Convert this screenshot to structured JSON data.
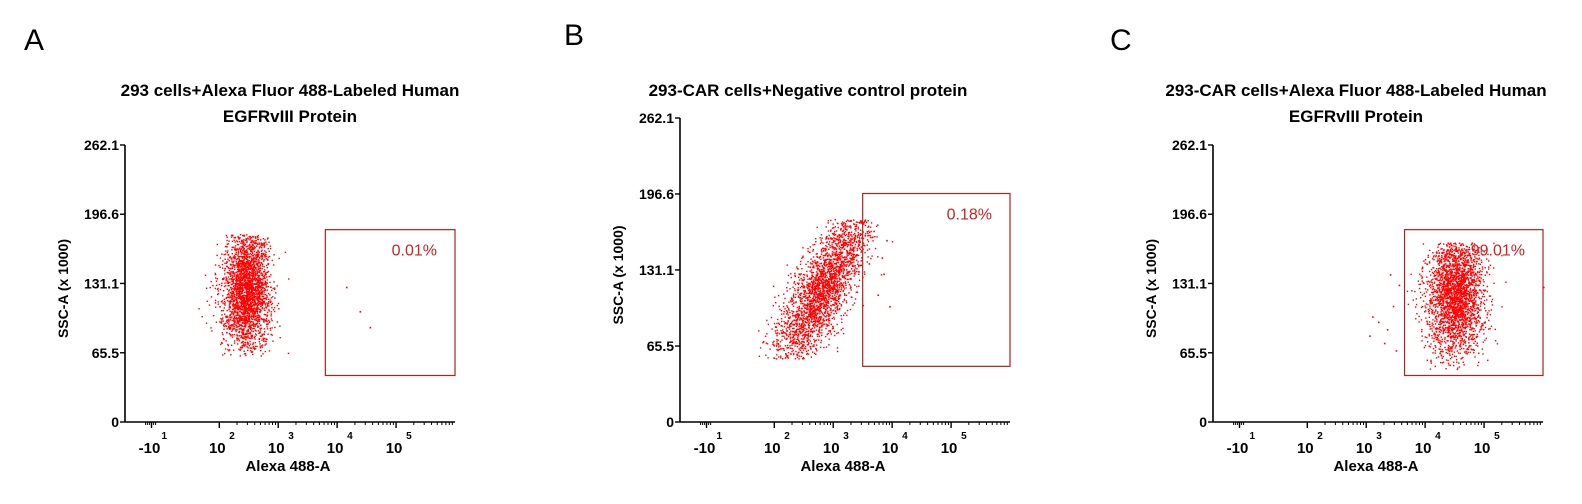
{
  "chart_data": [
    {
      "type": "scatter",
      "panel_label": "A",
      "title": [
        "293 cells+Alexa Fluor 488-Labeled Human",
        "EGFRvIII Protein"
      ],
      "xlabel": "Alexa 488-A",
      "ylabel": "SSC-A (x 1000)",
      "x_scale": "biexponential",
      "x_ticks": [
        {
          "base": "-10",
          "exp": "1"
        },
        {
          "base": "10",
          "exp": "2"
        },
        {
          "base": "10",
          "exp": "3"
        },
        {
          "base": "10",
          "exp": "4"
        },
        {
          "base": "10",
          "exp": "5"
        }
      ],
      "y_ticks": [
        "0",
        "65.5",
        "131.1",
        "196.6",
        "262.1"
      ],
      "ylim": [
        0,
        262.1
      ],
      "gate": {
        "x_range": [
          2.8,
          5.0
        ],
        "y_range": [
          44,
          182
        ],
        "percent": "0.01%"
      },
      "population": {
        "x_center": 1.45,
        "x_spread": 0.2,
        "y_center": 125,
        "y_spread": 30,
        "y_min": 63,
        "y_max": 178,
        "count": 2600,
        "tilt": 0
      },
      "outliers": [
        [
          3.15,
          128
        ],
        [
          3.38,
          105
        ],
        [
          3.55,
          90
        ]
      ],
      "color": "#ff0000",
      "gate_color": "#b02020",
      "label_color": "#cc2222"
    },
    {
      "type": "scatter",
      "panel_label": "B",
      "title": [
        "293-CAR cells+Negative control protein"
      ],
      "xlabel": "Alexa 488-A",
      "ylabel": "",
      "x_scale": "biexponential",
      "x_ticks": [
        {
          "base": "-10",
          "exp": "1"
        },
        {
          "base": "10",
          "exp": "2"
        },
        {
          "base": "10",
          "exp": "3"
        },
        {
          "base": "10",
          "exp": "4"
        },
        {
          "base": "10",
          "exp": "5"
        }
      ],
      "y_ticks": [
        "0",
        "65.5",
        "131.1",
        "196.6",
        "262.1"
      ],
      "ylim": [
        0,
        262.1
      ],
      "gate": {
        "x_range": [
          2.5,
          5.0
        ],
        "y_range": [
          48,
          197
        ],
        "percent": "0.18%"
      },
      "population": {
        "x_center": 1.8,
        "x_spread": 0.25,
        "y_center": 115,
        "y_spread": 34,
        "y_min": 55,
        "y_max": 175,
        "count": 2600,
        "tilt": 0.009
      },
      "outliers": [
        [
          2.6,
          137
        ],
        [
          2.85,
          128
        ],
        [
          2.9,
          157
        ],
        [
          2.75,
          110
        ],
        [
          2.95,
          100
        ],
        [
          2.82,
          142
        ],
        [
          2.68,
          165
        ]
      ],
      "color": "#ff0000",
      "gate_color": "#b02020",
      "label_color": "#cc2222"
    },
    {
      "type": "scatter",
      "panel_label": "C",
      "title": [
        "293-CAR cells+Alexa Fluor 488-Labeled Human",
        "EGFRvIII Protein"
      ],
      "xlabel": "Alexa 488-A",
      "ylabel": "SSC-A (x 1000)",
      "x_scale": "biexponential",
      "x_ticks": [
        {
          "base": "-10",
          "exp": "1"
        },
        {
          "base": "10",
          "exp": "2"
        },
        {
          "base": "10",
          "exp": "3"
        },
        {
          "base": "10",
          "exp": "4"
        },
        {
          "base": "10",
          "exp": "5"
        }
      ],
      "y_ticks": [
        "0",
        "65.5",
        "131.1",
        "196.6",
        "262.1"
      ],
      "ylim": [
        0,
        262.1
      ],
      "gate": {
        "x_range": [
          2.65,
          5.0
        ],
        "y_range": [
          44,
          182
        ],
        "percent": "99.01%"
      },
      "population": {
        "x_center": 3.5,
        "x_spread": 0.24,
        "y_center": 122,
        "y_spread": 30,
        "y_min": 50,
        "y_max": 170,
        "count": 2600,
        "tilt": 0
      },
      "outliers": [
        [
          2.05,
          82
        ],
        [
          2.2,
          95
        ],
        [
          2.3,
          75
        ],
        [
          2.45,
          110
        ],
        [
          2.5,
          68
        ],
        [
          2.55,
          130
        ],
        [
          2.4,
          140
        ],
        [
          5.0,
          128
        ],
        [
          2.1,
          100
        ],
        [
          2.35,
          88
        ]
      ],
      "color": "#ff0000",
      "gate_color": "#b02020",
      "label_color": "#cc2222"
    }
  ]
}
